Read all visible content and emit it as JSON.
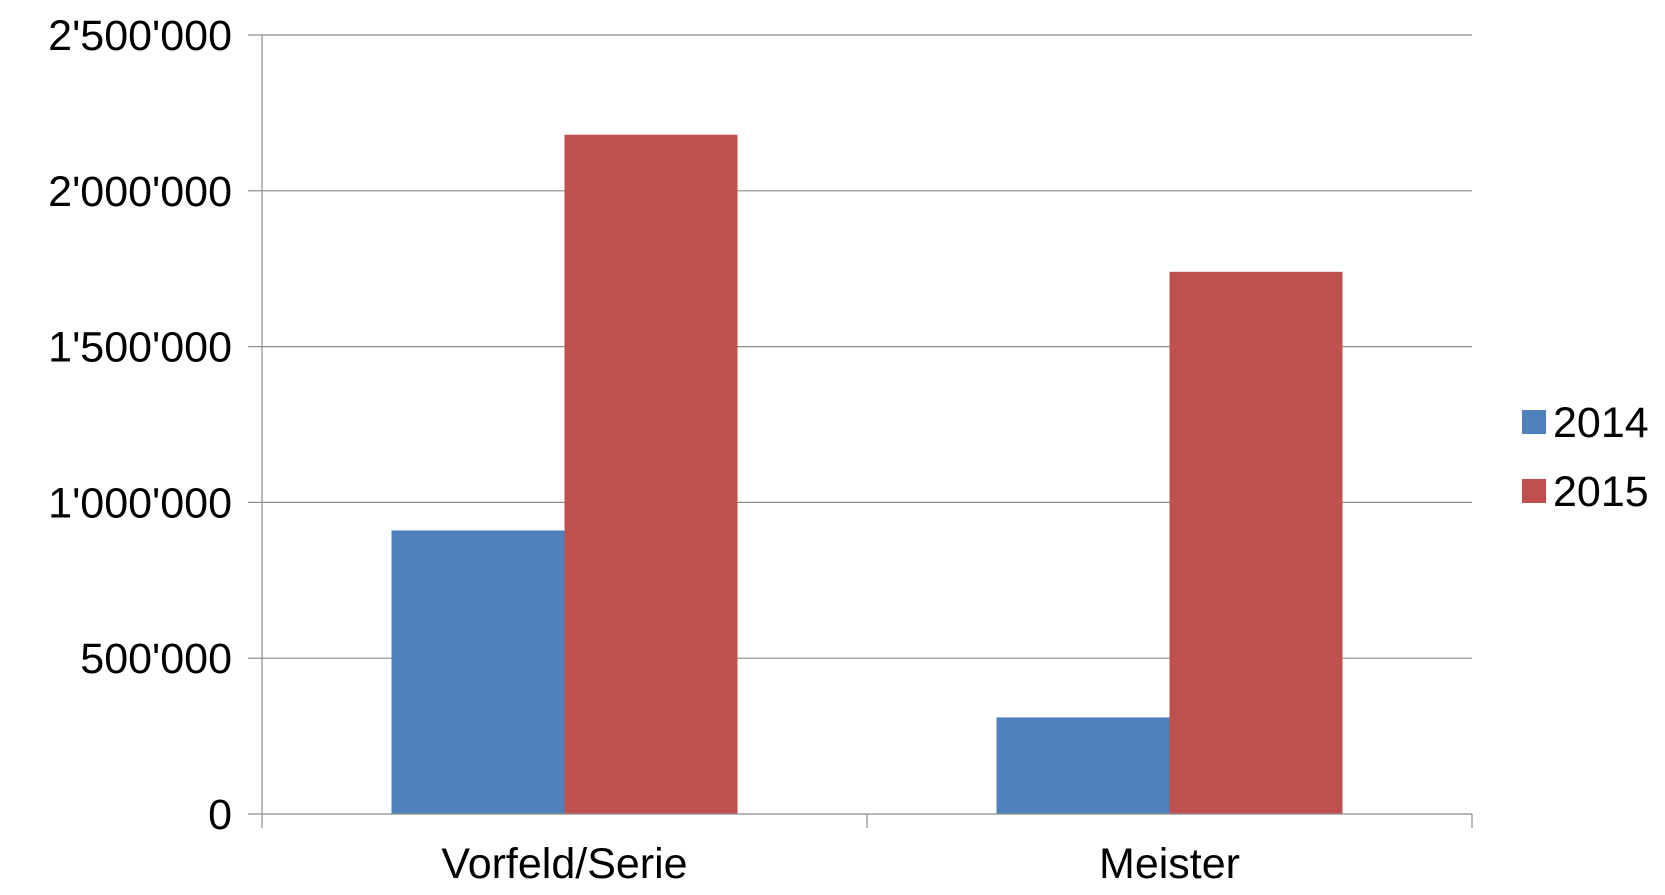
{
  "chart_data": {
    "type": "bar",
    "title": "",
    "xlabel": "",
    "ylabel": "",
    "categories": [
      "Vorfeld/Serie",
      "Meister"
    ],
    "series": [
      {
        "name": "2014",
        "color": "#4F81BD",
        "values": [
          910000,
          310000
        ]
      },
      {
        "name": "2015",
        "color": "#C0504D",
        "values": [
          2180000,
          1740000
        ]
      }
    ],
    "ylim": [
      0,
      2500000
    ],
    "yticks": [
      0,
      500000,
      1000000,
      1500000,
      2000000,
      2500000
    ],
    "ytick_labels": [
      "0",
      "500'000",
      "1'000'000",
      "1'500'000",
      "2'000'000",
      "2'500'000"
    ],
    "grid": true,
    "legend_position": "right"
  }
}
